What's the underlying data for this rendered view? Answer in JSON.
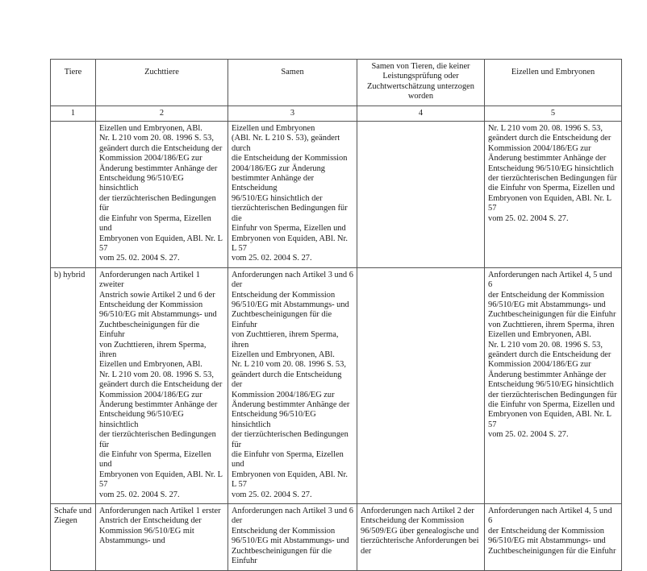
{
  "header": [
    "Tiere",
    "Zuchttiere",
    "Samen",
    "Samen von Tieren, die keiner\nLeistungsprüfung oder\nZuchtwertschätzung unterzogen worden",
    "Eizellen und Embryonen"
  ],
  "numbers": [
    "1",
    "2",
    "3",
    "4",
    "5"
  ],
  "rows": [
    [
      "",
      "Eizellen und Embryonen, ABl.\nNr. L 210 vom 20. 08. 1996 S. 53,\ngeändert durch die Entscheidung der\nKommission 2004/186/EG zur\nÄnderung bestimmter Anhänge der\nEntscheidung 96/510/EG hinsichtlich\nder tierzüchterischen Bedingungen für\ndie Einfuhr von Sperma, Eizellen und\nEmbryonen von Equiden, ABl. Nr. L 57\nvom 25. 02. 2004 S. 27.",
      "Eizellen und Embryonen\n(ABl. Nr. L 210 S. 53), geändert durch\ndie Entscheidung der Kommission\n2004/186/EG   zur Änderung\nbestimmter Anhänge der Entscheidung\n96/510/EG hinsichtlich der\ntierzüchterischen Bedingungen für die\nEinfuhr von Sperma, Eizellen und\nEmbryonen von Equiden, ABl. Nr. L 57\nvom 25. 02. 2004 S. 27.",
      "",
      "Nr. L 210 vom 20. 08. 1996 S. 53,\ngeändert durch die Entscheidung der\nKommission 2004/186/EG zur\nÄnderung bestimmter Anhänge der\nEntscheidung 96/510/EG hinsichtlich\nder tierzüchterischen Bedingungen für\ndie Einfuhr von Sperma, Eizellen und\nEmbryonen von Equiden, ABl. Nr. L 57\nvom 25. 02. 2004 S. 27."
    ],
    [
      "b) hybrid",
      "Anforderungen nach Artikel 1 zweiter\nAnstrich sowie Artikel 2 und 6 der\nEntscheidung der Kommission\n96/510/EG mit Abstammungs- und\nZuchtbescheinigungen für die Einfuhr\nvon Zuchttieren, ihrem Sperma, ihren\nEizellen und Embryonen, ABl.\nNr. L 210 vom 20. 08. 1996 S. 53,\ngeändert durch die Entscheidung der\nKommission 2004/186/EG zur\nÄnderung bestimmter Anhänge der\nEntscheidung 96/510/EG hinsichtlich\nder tierzüchterischen Bedingungen für\ndie Einfuhr von Sperma, Eizellen und\nEmbryonen von Equiden, ABl. Nr. L 57\nvom 25. 02. 2004 S. 27.",
      "Anforderungen nach Artikel 3 und 6 der\nEntscheidung der Kommission\n96/510/EG mit Abstammungs- und\nZuchtbescheinigungen für die Einfuhr\nvon Zuchttieren, ihrem Sperma, ihren\nEizellen und Embryonen, ABl.\nNr. L 210 vom 20. 08. 1996 S. 53,\ngeändert durch die Entscheidung der\nKommission 2004/186/EG zur\nÄnderung bestimmter Anhänge der\nEntscheidung 96/510/EG hinsichtlich\nder tierzüchterischen Bedingungen für\ndie Einfuhr von Sperma, Eizellen und\nEmbryonen von Equiden, ABl. Nr. L 57\nvom 25. 02. 2004 S. 27.",
      "",
      "Anforderungen nach Artikel 4, 5 und 6\nder Entscheidung der Kommission\n96/510/EG mit Abstammungs- und\nZuchtbescheinigungen für die Einfuhr\nvon Zuchttieren, ihrem Sperma, ihren\nEizellen und Embryonen, ABl.\nNr. L 210 vom 20. 08. 1996 S. 53,\ngeändert durch die Entscheidung der\nKommission 2004/186/EG zur\nÄnderung bestimmter Anhänge der\nEntscheidung 96/510/EG hinsichtlich\nder tierzüchterischen Bedingungen für\ndie Einfuhr von Sperma, Eizellen und\nEmbryonen von Equiden, ABl. Nr. L 57\nvom 25. 02. 2004 S. 27."
    ],
    [
      "Schafe und\nZiegen",
      "Anforderungen nach Artikel 1 erster\nAnstrich der Entscheidung der\nKommission 96/510/EG mit\nAbstammungs- und",
      "Anforderungen nach Artikel 3 und 6 der\nEntscheidung der Kommission\n96/510/EG mit Abstammungs- und\nZuchtbescheinigungen für die Einfuhr",
      "Anforderungen nach Artikel 2 der\nEntscheidung der Kommission\n96/509/EG über genealogische und\ntierzüchterische Anforderungen bei der",
      "Anforderungen nach Artikel 4, 5 und 6\nder Entscheidung der Kommission\n96/510/EG mit Abstammungs- und\nZuchtbescheinigungen für die Einfuhr"
    ]
  ]
}
